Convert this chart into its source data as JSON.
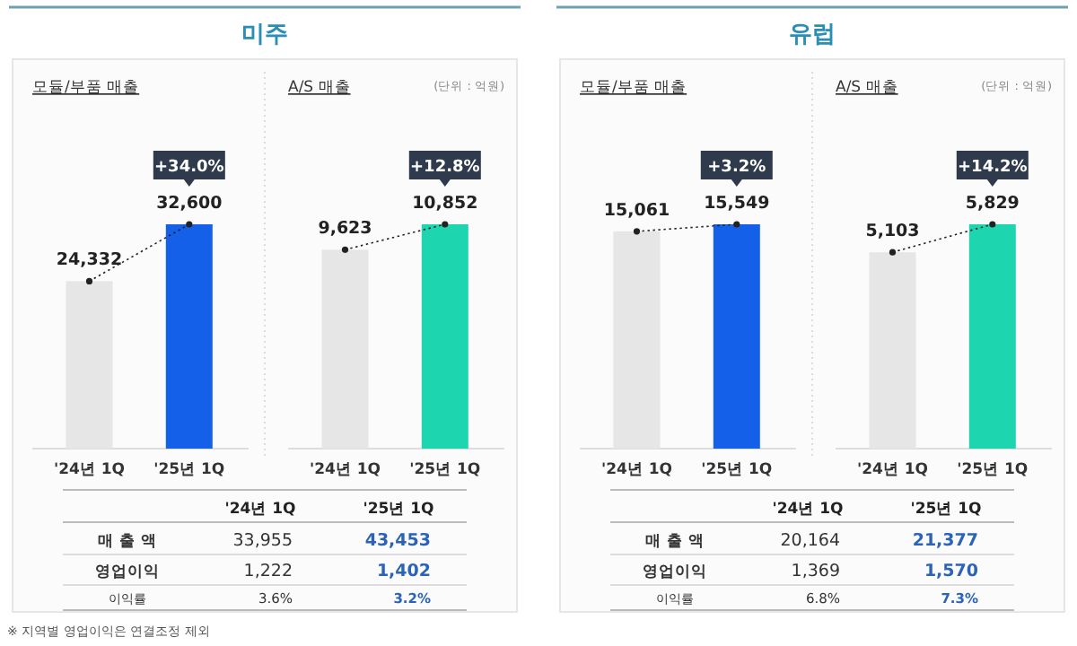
{
  "chart_data": [
    {
      "type": "bar",
      "title": "미주",
      "subtitle": "모듈/부품 매출",
      "categories": [
        "'24년 1Q",
        "'25년 1Q"
      ],
      "annotations": [
        {
          "text": "+34.0%",
          "x": "'25년 1Q",
          "y": 32600
        }
      ],
      "series": [
        {
          "type": "bar",
          "colors": [
            "#e6e6e6",
            "#1560e8"
          ],
          "values": [
            24332,
            32600
          ],
          "value_labels": [
            "24,332",
            "32,600"
          ]
        },
        {
          "type": "line",
          "color": "#222222",
          "line_style": "dotted",
          "marker": "circle",
          "values": [
            24332,
            32600
          ]
        }
      ]
    },
    {
      "type": "bar",
      "subtitle": "A/S 매출",
      "categories": [
        "'24년 1Q",
        "'25년 1Q"
      ],
      "annotations": [
        "(단위 : 억원)",
        {
          "text": "+12.8%",
          "x": "'25년 1Q",
          "y": 10852
        }
      ],
      "series": [
        {
          "type": "bar",
          "colors": [
            "#e6e6e6",
            "#1dd6b0"
          ],
          "values": [
            9623,
            10852
          ],
          "value_labels": [
            "9,623",
            "10,852"
          ]
        },
        {
          "type": "line",
          "color": "#222222",
          "line_style": "dotted",
          "marker": "circle",
          "values": [
            9623,
            10852
          ]
        }
      ]
    },
    {
      "type": "other",
      "categories": [
        "'24년 1Q",
        "'25년 1Q"
      ],
      "y_categories": [
        "매 출 액",
        "영업이익",
        "이익률"
      ],
      "colors": [
        "#333333",
        "#2b63b8"
      ],
      "cell_labels": [
        [
          "33,955",
          "43,453"
        ],
        [
          "1,222",
          "1,402"
        ],
        [
          "3.6%",
          "3.2%"
        ]
      ]
    },
    {
      "type": "bar",
      "title": "유럽",
      "subtitle": "모듈/부품 매출",
      "categories": [
        "'24년 1Q",
        "'25년 1Q"
      ],
      "annotations": [
        {
          "text": "+3.2%",
          "x": "'25년 1Q",
          "y": 15549
        }
      ],
      "series": [
        {
          "type": "bar",
          "colors": [
            "#e6e6e6",
            "#1560e8"
          ],
          "values": [
            15061,
            15549
          ],
          "value_labels": [
            "15,061",
            "15,549"
          ]
        },
        {
          "type": "line",
          "color": "#222222",
          "line_style": "dotted",
          "marker": "circle",
          "values": [
            15061,
            15549
          ]
        }
      ]
    },
    {
      "type": "bar",
      "subtitle": "A/S 매출",
      "categories": [
        "'24년 1Q",
        "'25년 1Q"
      ],
      "annotations": [
        "(단위 : 억원)",
        {
          "text": "+14.2%",
          "x": "'25년 1Q",
          "y": 5829
        }
      ],
      "series": [
        {
          "type": "bar",
          "colors": [
            "#e6e6e6",
            "#1dd6b0"
          ],
          "values": [
            5103,
            5829
          ],
          "value_labels": [
            "5,103",
            "5,829"
          ]
        },
        {
          "type": "line",
          "color": "#222222",
          "line_style": "dotted",
          "marker": "circle",
          "values": [
            5103,
            5829
          ]
        }
      ]
    },
    {
      "type": "other",
      "categories": [
        "'24년 1Q",
        "'25년 1Q"
      ],
      "y_categories": [
        "매 출 액",
        "영업이익",
        "이익률"
      ],
      "colors": [
        "#333333",
        "#2b63b8"
      ],
      "cell_labels": [
        [
          "20,164",
          "21,377"
        ],
        [
          "1,369",
          "1,570"
        ],
        [
          "6.8%",
          "7.3%"
        ]
      ],
      "annotations": [
        "※ 지역별 영업이익은 연결조정 제외"
      ]
    }
  ]
}
